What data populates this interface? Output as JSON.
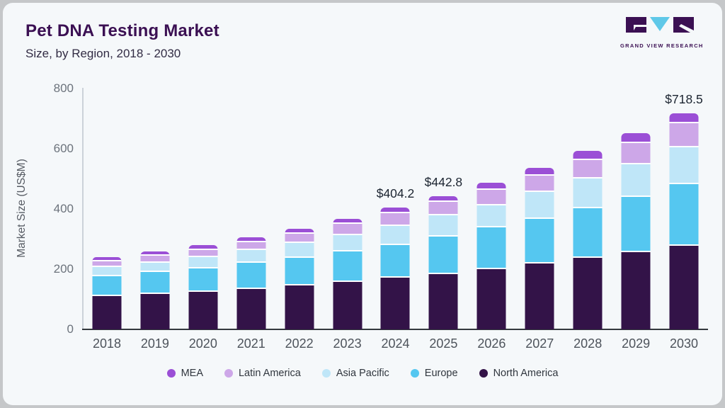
{
  "header": {
    "title": "Pet DNA Testing Market",
    "subtitle": "Size, by Region, 2018 - 2030",
    "logo_text": "GRAND VIEW RESEARCH"
  },
  "colors": {
    "card_bg": "#f5f8fa",
    "title": "#3b1053",
    "axis_line": "#33383d",
    "yaxis_line": "#ccd2d9",
    "logo_purple": "#3b1053",
    "logo_blue": "#5fc8e8"
  },
  "chart_data": {
    "type": "bar",
    "stacked": true,
    "title": "Pet DNA Testing Market",
    "subtitle": "Size, by Region, 2018 - 2030",
    "xlabel": "",
    "ylabel": "Market Size (US$M)",
    "ylim": [
      0,
      800
    ],
    "yticks": [
      0,
      200,
      400,
      600,
      800
    ],
    "grid": false,
    "legend_position": "bottom",
    "categories": [
      "2018",
      "2019",
      "2020",
      "2021",
      "2022",
      "2023",
      "2024",
      "2025",
      "2026",
      "2027",
      "2028",
      "2029",
      "2030"
    ],
    "series": [
      {
        "name": "North America",
        "color": "#331348",
        "values": [
          111,
          118,
          124,
          135,
          146,
          158,
          171,
          183,
          200,
          218,
          237,
          256,
          277
        ]
      },
      {
        "name": "Europe",
        "color": "#55c7f0",
        "values": [
          65,
          72,
          78,
          86,
          92,
          100,
          110,
          126,
          138,
          150,
          166,
          185,
          205
        ]
      },
      {
        "name": "Asia Pacific",
        "color": "#bfe6f8",
        "values": [
          31,
          32,
          39,
          43,
          49,
          55,
          62,
          71,
          74,
          88,
          98,
          108,
          122
        ]
      },
      {
        "name": "Latin America",
        "color": "#cda7e8",
        "values": [
          20,
          22,
          23,
          26,
          31,
          38,
          43,
          44,
          51,
          55,
          62,
          71,
          81
        ]
      },
      {
        "name": "MEA",
        "color": "#9b4fd6",
        "values": [
          13,
          15,
          17,
          16,
          17,
          17,
          18.2,
          18.8,
          24,
          26,
          29,
          32,
          33.5
        ]
      }
    ],
    "legend_order": [
      "MEA",
      "Latin America",
      "Asia Pacific",
      "Europe",
      "North America"
    ],
    "annotations": [
      {
        "category": "2024",
        "label": "$404.2"
      },
      {
        "category": "2025",
        "label": "$442.8"
      },
      {
        "category": "2030",
        "label": "$718.5"
      }
    ]
  }
}
